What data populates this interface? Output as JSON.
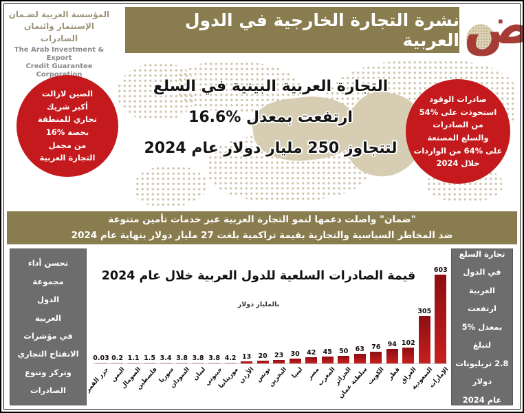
{
  "header": {
    "org_name_ar": "المؤسسة العربية لضـمان\nالإستثمار وائتمان الصادرات",
    "org_name_en": "The Arab Investment & Export\nCredit Guarantee Corporation",
    "title": "نشرة التجارة الخارجية في الدول العربية",
    "logo_letter": "ض"
  },
  "map_section": {
    "left_bubble": "الصين لازالت\nأكبر شريك\nتجاري للمنطقة\nبحصة %16\nمن مجمل\nالتجارة العربية",
    "headline": {
      "line1": "التجارة العربية البينية في السلع",
      "line2": "ارتفعت بمعدل %16.6",
      "line3": "لتتجاوز 250 مليار دولار عام 2024"
    },
    "right_bubble": "صادرات الوقود\nاستحوذت على %54\nمن الصادرات\nوالسلع المصنعة\nعلى %64 من الواردات\nخلال 2024"
  },
  "banner": {
    "line1": "\"ضمان\" واصلت دعمها لنمو التجارة العربية عبر خدمات تأمين متنوعة",
    "line2": "ضد المخاطر السياسية والتجارية بقيمة تراكمية بلغت 27 مليار دولار بنهاية عام 2024"
  },
  "left_panel": {
    "text": "تحسن أداء\nمجموعة\nالدول\nالعربية\nفي مؤشرات\nالانفتاح التجاري\nوتركز وتنوع\nالصادرات"
  },
  "right_panel": {
    "text": "تجارة السلع\nفي الدول العربية\nارتفعت\nبمعدل %5\nلتبلغ\n2.8 تريليونات\nدولار\nعام 2024"
  },
  "chart_data": {
    "type": "bar",
    "title": "قيمة الصادرات السلعية للدول العربية خلال عام 2024",
    "unit_label": "بالمليار دولار",
    "categories": [
      "جزر القمر",
      "اليمن",
      "الصومال",
      "فلسطين",
      "سوريا",
      "السودان",
      "لبنان",
      "جيبوتي",
      "موريتانيا",
      "الأردن",
      "تونس",
      "البحرين",
      "ليبيا",
      "مصر",
      "المغرب",
      "الجزائر",
      "سلطنة عمان",
      "الكويت",
      "قطر",
      "العراق",
      "السعودية",
      "الإمارات"
    ],
    "values": [
      0.03,
      0.2,
      1.1,
      1.5,
      3.4,
      3.8,
      3.8,
      3.8,
      4.2,
      13,
      20,
      23,
      30,
      42,
      45,
      50,
      63,
      76,
      94,
      102,
      305,
      603
    ],
    "xlabel": "",
    "ylabel": "بالمليار دولار",
    "ylim": [
      0,
      650
    ],
    "grid": false,
    "value_labels": true,
    "legend_position": "none"
  },
  "colors": {
    "red": "#c41a1d",
    "khaki": "#897c4e",
    "panel-gray": "#6d6d6d",
    "map-dot": "#cfc6ac",
    "land": "#d6cdb3",
    "bar-dark": "#8c0e12",
    "bar-bright": "#c92020",
    "bar-pale": "#d8a9a1",
    "logo-red": "#a53c35"
  }
}
